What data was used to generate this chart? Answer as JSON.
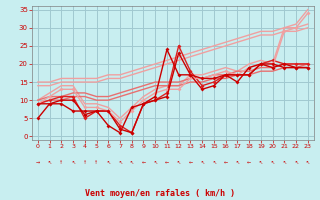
{
  "bg_color": "#c8eef0",
  "grid_color": "#a0c8d0",
  "xlabel": "Vent moyen/en rafales ( km/h )",
  "xlabel_color": "#cc0000",
  "ylabel_color": "#cc0000",
  "xlim": [
    -0.5,
    23.5
  ],
  "ylim": [
    -1,
    36
  ],
  "yticks": [
    0,
    5,
    10,
    15,
    20,
    25,
    30,
    35
  ],
  "xticks": [
    0,
    1,
    2,
    3,
    4,
    5,
    6,
    7,
    8,
    9,
    10,
    11,
    12,
    13,
    14,
    15,
    16,
    17,
    18,
    19,
    20,
    21,
    22,
    23
  ],
  "wind_symbols": [
    "→",
    "↖",
    "↑",
    "↖",
    "↑",
    "↑",
    "↖",
    "↖",
    "↖",
    "←",
    "↖",
    "←",
    "↖",
    "←",
    "↖",
    "↖",
    "←",
    "↖",
    "←",
    "↖",
    "↖",
    "↖",
    "↖",
    "↖"
  ],
  "lines": [
    {
      "x": [
        0,
        1,
        2,
        3,
        4,
        5,
        6,
        7,
        8,
        9,
        10,
        11,
        12,
        13,
        14,
        15,
        16,
        17,
        18,
        19,
        20,
        21,
        22,
        23
      ],
      "y": [
        9,
        9,
        10,
        10,
        6,
        7,
        7,
        2,
        1,
        9,
        10,
        11,
        23,
        17,
        13,
        14,
        17,
        17,
        17,
        20,
        20,
        19,
        19,
        19
      ],
      "color": "#cc0000",
      "lw": 1.0,
      "marker": "D",
      "ms": 2.0,
      "zorder": 5
    },
    {
      "x": [
        0,
        1,
        2,
        3,
        4,
        5,
        6,
        7,
        8,
        9,
        10,
        11,
        12,
        13,
        14,
        15,
        16,
        17,
        18,
        19,
        20,
        21,
        22,
        23
      ],
      "y": [
        5,
        9,
        9,
        7,
        7,
        7,
        3,
        1,
        8,
        9,
        11,
        24,
        17,
        17,
        16,
        16,
        17,
        15,
        19,
        20,
        19,
        20,
        19,
        19
      ],
      "color": "#cc0000",
      "lw": 1.0,
      "marker": "D",
      "ms": 2.0,
      "zorder": 5
    },
    {
      "x": [
        0,
        1,
        2,
        3,
        4,
        5,
        6,
        7,
        8,
        9,
        10,
        11,
        12,
        13,
        14,
        15,
        16,
        17,
        18,
        19,
        20,
        21,
        22,
        23
      ],
      "y": [
        9,
        10,
        10,
        11,
        11,
        10,
        10,
        11,
        12,
        13,
        14,
        14,
        14,
        15,
        15,
        16,
        16,
        17,
        17,
        18,
        18,
        19,
        19,
        20
      ],
      "color": "#e87070",
      "lw": 1.0,
      "marker": null,
      "ms": 0,
      "zorder": 3
    },
    {
      "x": [
        0,
        1,
        2,
        3,
        4,
        5,
        6,
        7,
        8,
        9,
        10,
        11,
        12,
        13,
        14,
        15,
        16,
        17,
        18,
        19,
        20,
        21,
        22,
        23
      ],
      "y": [
        10,
        11,
        11,
        12,
        12,
        11,
        11,
        12,
        13,
        14,
        15,
        15,
        15,
        16,
        16,
        17,
        17,
        18,
        18,
        19,
        19,
        20,
        20,
        20
      ],
      "color": "#e87070",
      "lw": 1.0,
      "marker": null,
      "ms": 0,
      "zorder": 3
    },
    {
      "x": [
        0,
        1,
        2,
        3,
        4,
        5,
        6,
        7,
        8,
        9,
        10,
        11,
        12,
        13,
        14,
        15,
        16,
        17,
        18,
        19,
        20,
        21,
        22,
        23
      ],
      "y": [
        14,
        14,
        15,
        15,
        15,
        15,
        16,
        16,
        17,
        18,
        19,
        20,
        21,
        22,
        23,
        24,
        25,
        26,
        27,
        28,
        28,
        29,
        29,
        30
      ],
      "color": "#f0a0a0",
      "lw": 1.0,
      "marker": null,
      "ms": 0,
      "zorder": 2
    },
    {
      "x": [
        0,
        1,
        2,
        3,
        4,
        5,
        6,
        7,
        8,
        9,
        10,
        11,
        12,
        13,
        14,
        15,
        16,
        17,
        18,
        19,
        20,
        21,
        22,
        23
      ],
      "y": [
        15,
        15,
        16,
        16,
        16,
        16,
        17,
        17,
        18,
        19,
        20,
        21,
        22,
        23,
        24,
        25,
        26,
        27,
        28,
        29,
        29,
        30,
        30,
        31
      ],
      "color": "#f0a0a0",
      "lw": 1.0,
      "marker": null,
      "ms": 0,
      "zorder": 2
    },
    {
      "x": [
        0,
        1,
        2,
        3,
        4,
        5,
        6,
        7,
        8,
        9,
        10,
        11,
        12,
        13,
        14,
        15,
        16,
        17,
        18,
        19,
        20,
        21,
        22,
        23
      ],
      "y": [
        9,
        10,
        11,
        11,
        5,
        7,
        7,
        3,
        1,
        9,
        10,
        12,
        25,
        18,
        14,
        15,
        17,
        17,
        17,
        20,
        21,
        20,
        20,
        20
      ],
      "color": "#dd2020",
      "lw": 1.0,
      "marker": "D",
      "ms": 2.0,
      "zorder": 4
    },
    {
      "x": [
        0,
        1,
        2,
        3,
        4,
        5,
        6,
        7,
        8,
        9,
        10,
        11,
        12,
        13,
        14,
        15,
        16,
        17,
        18,
        19,
        20,
        21,
        22,
        23
      ],
      "y": [
        9,
        11,
        13,
        13,
        8,
        8,
        7,
        4,
        7,
        10,
        12,
        13,
        13,
        16,
        16,
        17,
        18,
        17,
        19,
        20,
        19,
        29,
        30,
        34
      ],
      "color": "#f0a0a0",
      "lw": 1.0,
      "marker": "D",
      "ms": 2.0,
      "zorder": 4
    },
    {
      "x": [
        0,
        1,
        2,
        3,
        4,
        5,
        6,
        7,
        8,
        9,
        10,
        11,
        12,
        13,
        14,
        15,
        16,
        17,
        18,
        19,
        20,
        21,
        22,
        23
      ],
      "y": [
        10,
        12,
        14,
        14,
        9,
        9,
        8,
        5,
        8,
        11,
        13,
        14,
        14,
        17,
        17,
        18,
        19,
        18,
        20,
        21,
        20,
        30,
        31,
        35
      ],
      "color": "#f0a0a0",
      "lw": 1.0,
      "marker": null,
      "ms": 0,
      "zorder": 2
    }
  ]
}
